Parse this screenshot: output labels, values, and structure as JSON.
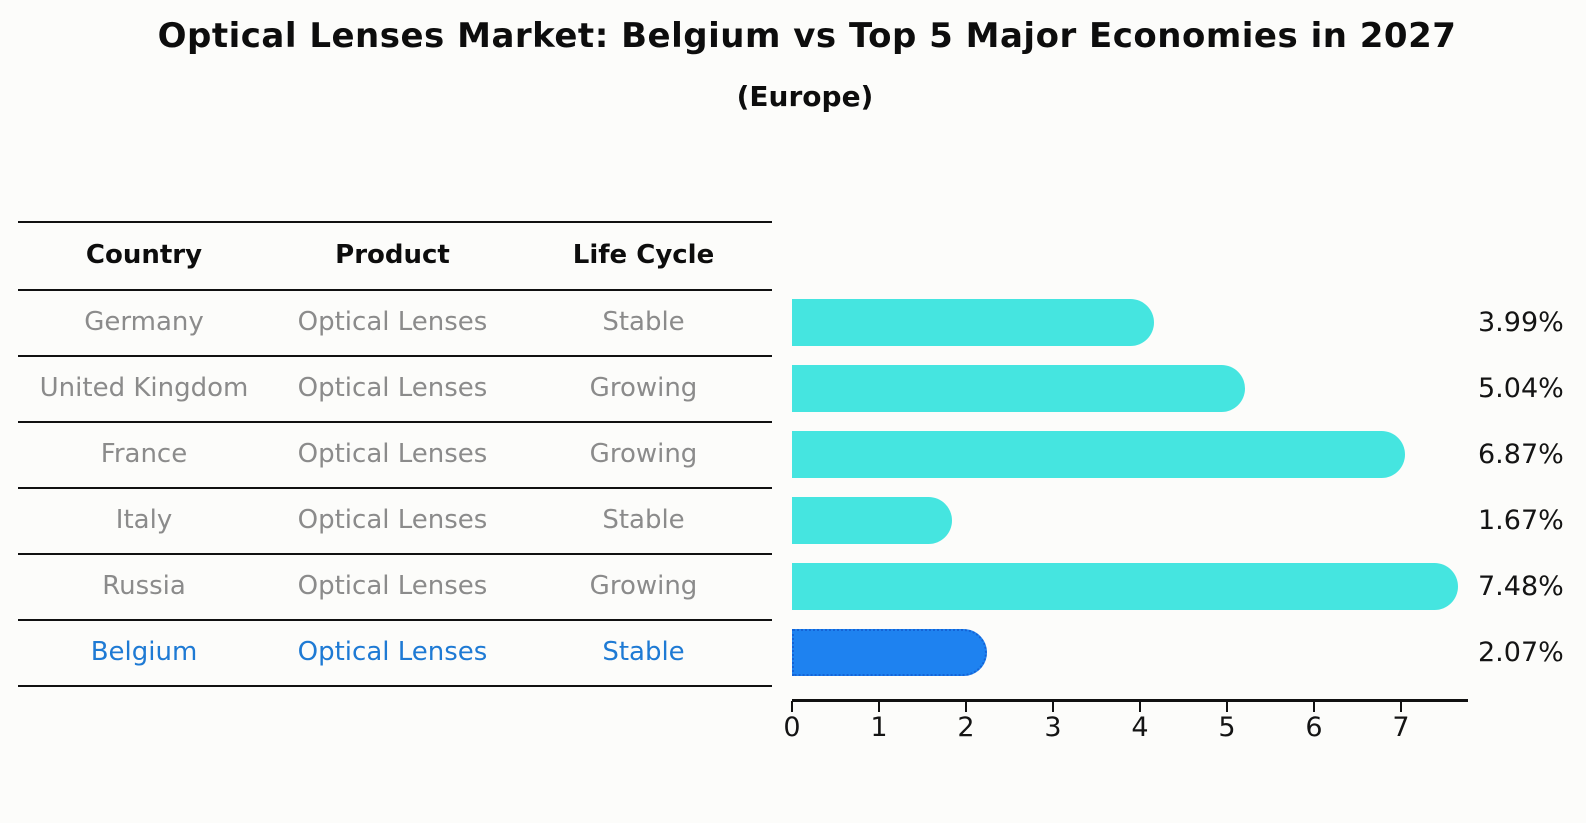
{
  "title": "Optical Lenses Market: Belgium vs Top 5 Major Economies in 2027",
  "subtitle": "(Europe)",
  "table": {
    "headers": [
      "Country",
      "Product",
      "Life Cycle"
    ],
    "rows": [
      {
        "country": "Germany",
        "product": "Optical Lenses",
        "life_cycle": "Stable",
        "highlight": false
      },
      {
        "country": "United Kingdom",
        "product": "Optical Lenses",
        "life_cycle": "Growing",
        "highlight": false
      },
      {
        "country": "France",
        "product": "Optical Lenses",
        "life_cycle": "Growing",
        "highlight": false
      },
      {
        "country": "Italy",
        "product": "Optical Lenses",
        "life_cycle": "Stable",
        "highlight": false
      },
      {
        "country": "Russia",
        "product": "Optical Lenses",
        "life_cycle": "Growing",
        "highlight": false
      },
      {
        "country": "Belgium",
        "product": "Optical Lenses",
        "life_cycle": "Stable",
        "highlight": true
      }
    ]
  },
  "chart_data": {
    "type": "bar",
    "orientation": "horizontal",
    "title": "Optical Lenses Market: Belgium vs Top 5 Major Economies in 2027 (Europe)",
    "categories": [
      "Germany",
      "United Kingdom",
      "France",
      "Italy",
      "Russia",
      "Belgium"
    ],
    "values": [
      3.99,
      5.04,
      6.87,
      1.67,
      7.48,
      2.07
    ],
    "value_labels": [
      "3.99%",
      "5.04%",
      "6.87%",
      "1.67%",
      "7.48%",
      "2.07%"
    ],
    "xlabel": "",
    "ylabel": "",
    "xlim": [
      0,
      7.77
    ],
    "x_ticks": [
      "0",
      "1",
      "2",
      "3",
      "4",
      "5",
      "6",
      "7"
    ],
    "grid": false,
    "legend": false,
    "highlight_index": 5,
    "bar_color": "#45e5e0",
    "highlight_bar_color": "#1e82f0",
    "highlight_border_color": "#1463d6",
    "highlight_text_color": "#1e7ad4",
    "text_color": "#8b8b8b",
    "axis_color": "#111111"
  }
}
